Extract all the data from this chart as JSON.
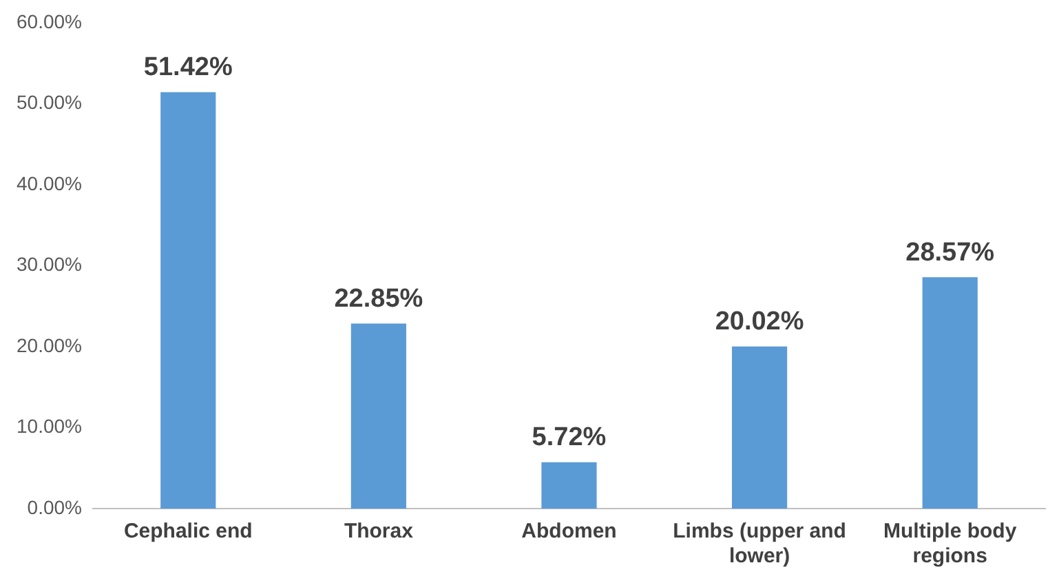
{
  "chart_data": {
    "type": "bar",
    "categories": [
      "Cephalic end",
      "Thorax",
      "Abdomen",
      "Limbs (upper and lower)",
      "Multiple body regions"
    ],
    "values": [
      51.42,
      22.85,
      5.72,
      20.02,
      28.57
    ],
    "color": "#5b9bd5",
    "value_labels": [
      "51.42%",
      "22.85%",
      "5.72%",
      "20.02%",
      "28.57%"
    ],
    "ylim": [
      0,
      60
    ],
    "yticks": [
      {
        "value": 0,
        "label": "0.00%"
      },
      {
        "value": 10,
        "label": "10.00%"
      },
      {
        "value": 20,
        "label": "20.00%"
      },
      {
        "value": 30,
        "label": "30.00%"
      },
      {
        "value": 40,
        "label": "40.00%"
      },
      {
        "value": 50,
        "label": "50.00%"
      },
      {
        "value": 60,
        "label": "60.00%"
      }
    ],
    "grid": false,
    "legend": false
  }
}
